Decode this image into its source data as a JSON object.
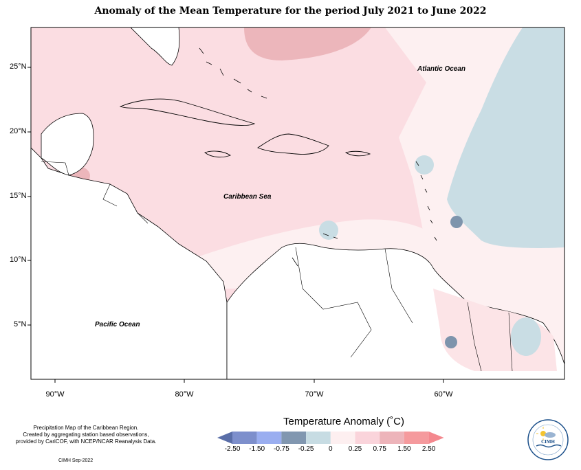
{
  "title": "Anomaly of the Mean Temperature for the period July 2021 to June 2022",
  "y_ticks": [
    "25°N",
    "20°N",
    "15°N",
    "10°N",
    "5°N"
  ],
  "x_ticks": [
    "90°W",
    "80°W",
    "70°W",
    "60°W"
  ],
  "map_labels": {
    "atlantic": "Atlantic Ocean",
    "caribbean": "Caribbean Sea",
    "pacific": "Pacific Ocean"
  },
  "credits": {
    "line1": "Precipitation Map of the Caribbean Region.",
    "line2": "Created by aggregating station based observations,",
    "line3": "provided by CariCOF, with NCEP/NCAR Reanalysis Data.",
    "stamp": "CIMH Sep-2022"
  },
  "legend": {
    "title": "Temperature Anomaly (˚C)",
    "ticks": [
      "-2.50",
      "-1.50",
      "-0.75",
      "-0.25",
      "0",
      "0.25",
      "0.75",
      "1.50",
      "2.50"
    ],
    "colors": [
      "#5a6ea8",
      "#7d8fcc",
      "#9aaef0",
      "#8197b0",
      "#c7dce3",
      "#fdeff0",
      "#fad4db",
      "#edb4ba",
      "#f59a9d",
      "#f4888e"
    ]
  },
  "logo_text": "CIMH"
}
